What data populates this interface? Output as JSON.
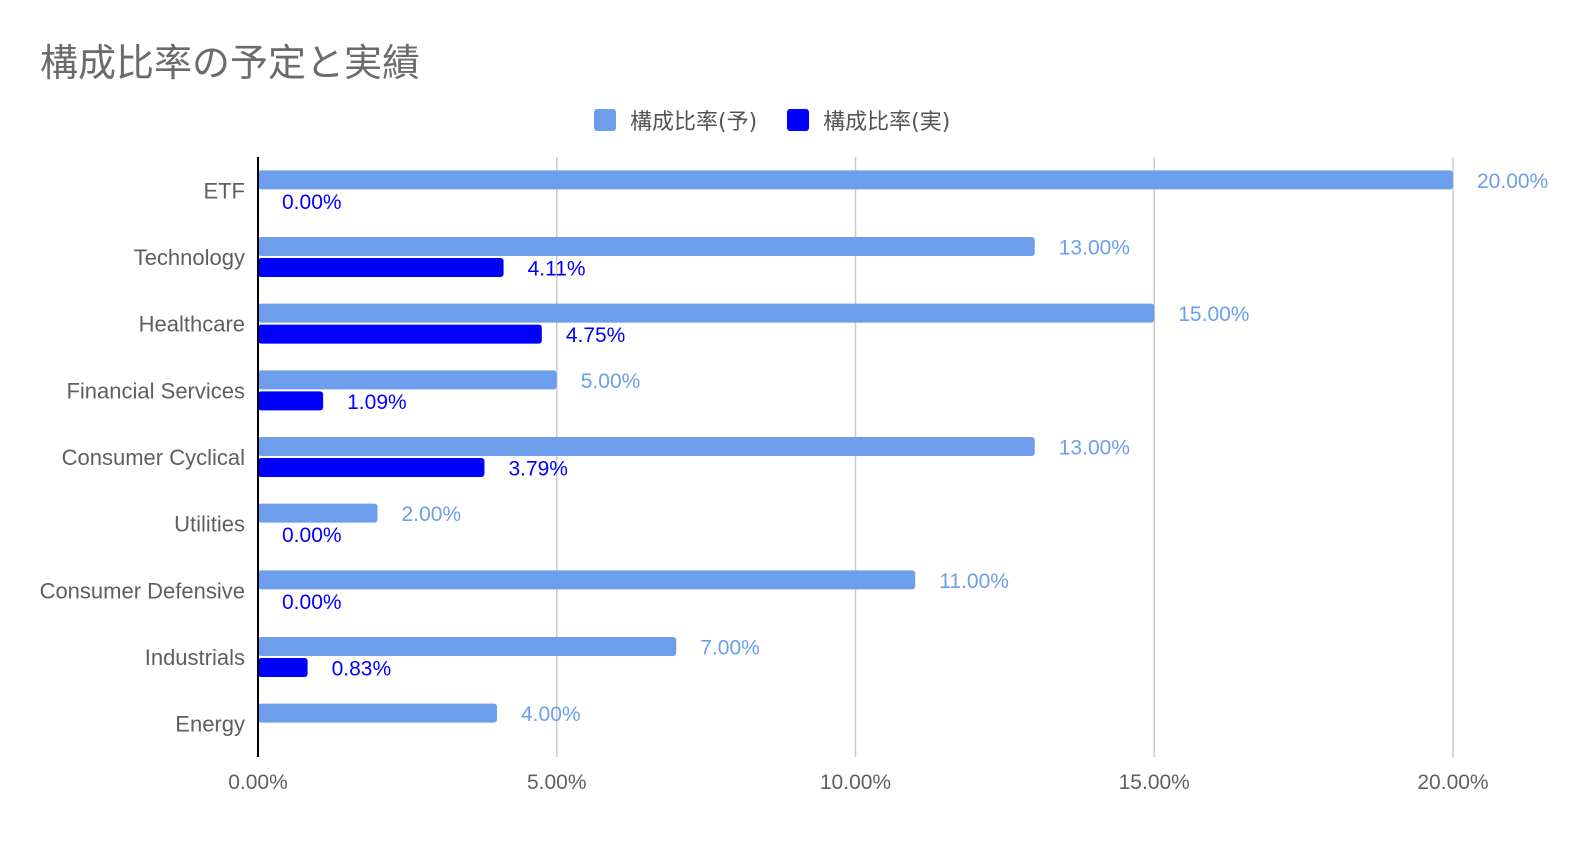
{
  "title": "構成比率の予定と実績",
  "colors": {
    "planned": "#6d9eeb",
    "actual": "#0000ff",
    "grid": "#cccccc",
    "axis": "#000000",
    "tick": "#5f5f5f"
  },
  "legend": {
    "planned_label": "構成比率(予)",
    "actual_label": "構成比率(実)"
  },
  "chart_data": {
    "type": "bar",
    "orientation": "horizontal",
    "title": "構成比率の予定と実績",
    "categories": [
      "ETF",
      "Technology",
      "Healthcare",
      "Financial Services",
      "Consumer Cyclical",
      "Utilities",
      "Consumer Defensive",
      "Industrials",
      "Energy"
    ],
    "series": [
      {
        "name": "構成比率(予)",
        "values": [
          20.0,
          13.0,
          15.0,
          5.0,
          13.0,
          2.0,
          11.0,
          7.0,
          4.0
        ],
        "labels": [
          "20.00%",
          "13.00%",
          "15.00%",
          "5.00%",
          "13.00%",
          "2.00%",
          "11.00%",
          "7.00%",
          "4.00%"
        ]
      },
      {
        "name": "構成比率(実)",
        "values": [
          0.0,
          4.11,
          4.75,
          1.09,
          3.79,
          0.0,
          0.0,
          0.83,
          null
        ],
        "labels": [
          "0.00%",
          "4.11%",
          "4.75%",
          "1.09%",
          "3.79%",
          "0.00%",
          "0.00%",
          "0.83%",
          ""
        ]
      }
    ],
    "xlim": [
      0,
      20
    ],
    "xticks": [
      "0.00%",
      "5.00%",
      "10.00%",
      "15.00%",
      "20.00%"
    ],
    "grid": true,
    "legend_position": "top"
  }
}
